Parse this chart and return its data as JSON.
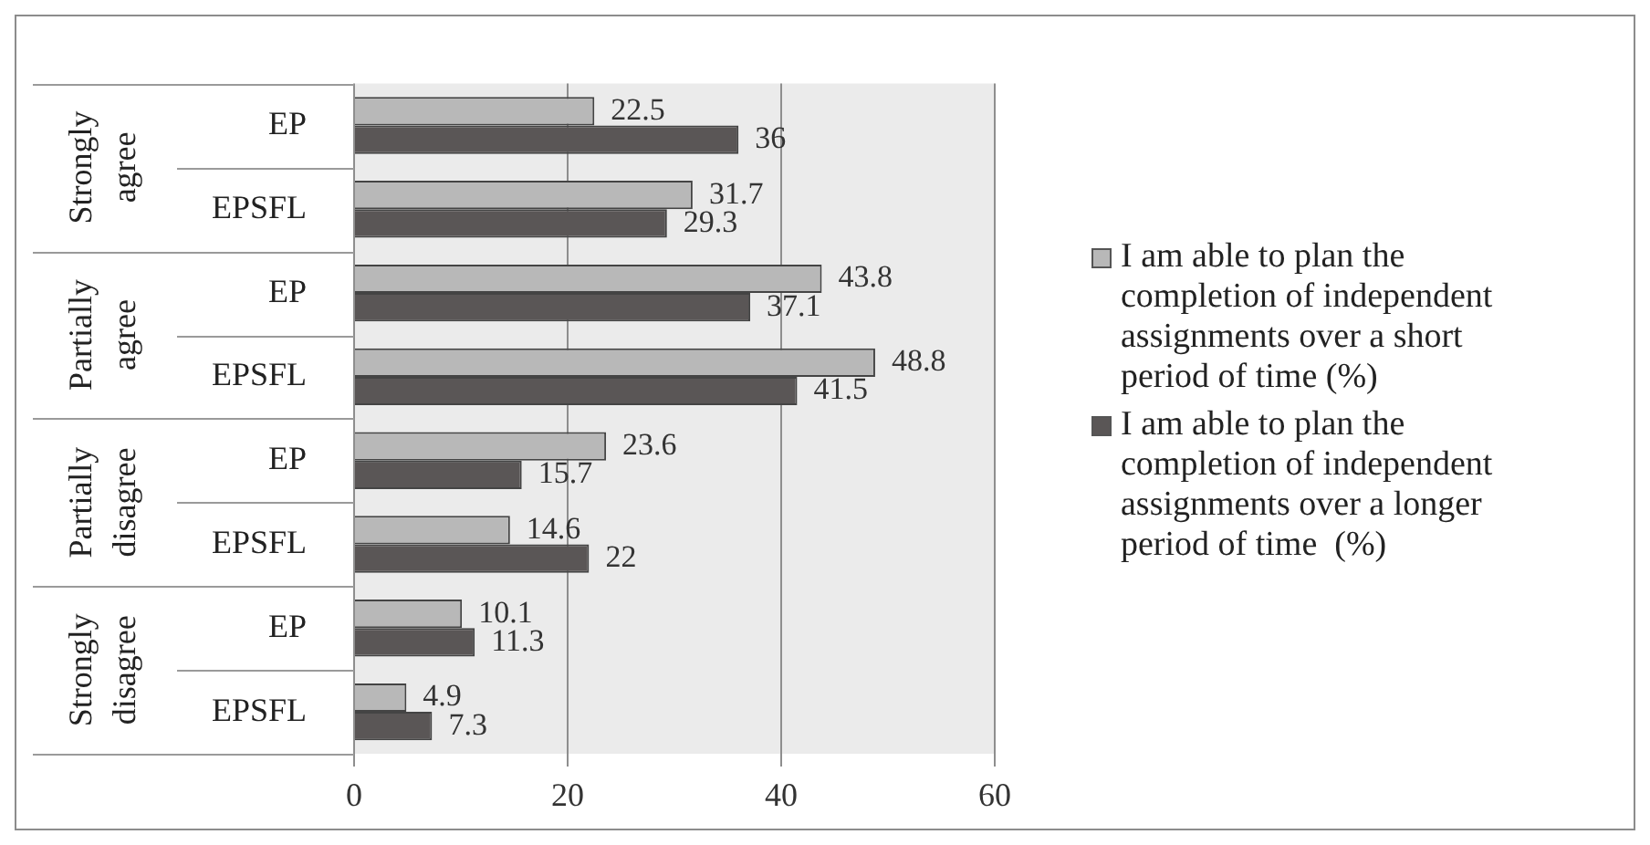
{
  "chart_data": {
    "type": "bar",
    "orientation": "horizontal",
    "categories": [
      "EP",
      "EPSFL",
      "EP",
      "EPSFL",
      "EP",
      "EPSFL",
      "EP",
      "EPSFL"
    ],
    "annotations": [
      "Strongly agree",
      "Partially agree",
      "Partially disagree",
      "Strongly disagree"
    ],
    "series": [
      {
        "name": "I am able to plan the completion of independent assignments over a short period of time (%)",
        "color": "#b8b8b8",
        "values": [
          22.5,
          31.7,
          43.8,
          48.8,
          23.6,
          14.6,
          10.1,
          4.9
        ]
      },
      {
        "name": "I am able to plan the completion of independent assignments over a longer period of time  (%)",
        "color": "#5a5656",
        "values": [
          36,
          29.3,
          37.1,
          41.5,
          15.7,
          22,
          11.3,
          7.3
        ]
      }
    ],
    "xlim": [
      0,
      60
    ],
    "xticks": [
      0,
      20,
      40,
      60
    ],
    "grid": "x",
    "legend": "right",
    "data_labels": true
  }
}
